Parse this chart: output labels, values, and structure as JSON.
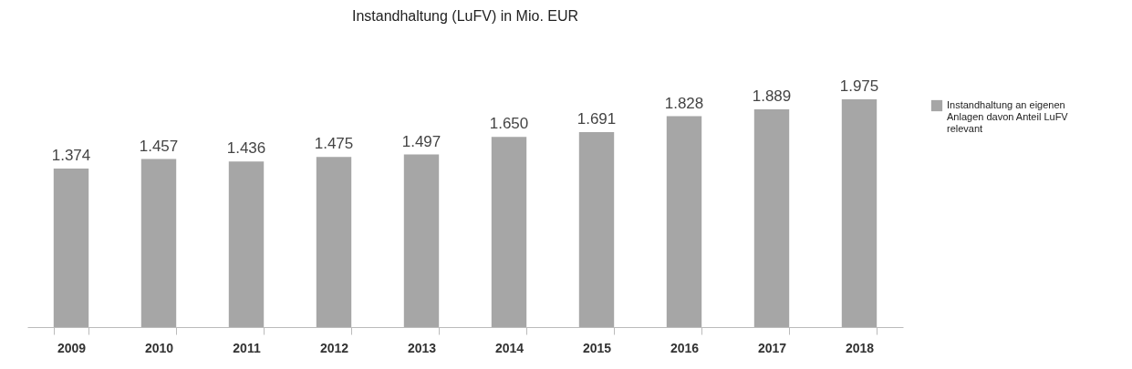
{
  "chart_data": {
    "type": "bar",
    "title": "Instandhaltung (LuFV) in Mio. EUR",
    "categories": [
      "2009",
      "2010",
      "2011",
      "2012",
      "2013",
      "2014",
      "2015",
      "2016",
      "2017",
      "2018"
    ],
    "series": [
      {
        "name": "Instandhaltung an eigenen Anlagen davon Anteil LuFV relevant",
        "color": "#a6a6a6",
        "values": [
          1374,
          1457,
          1436,
          1475,
          1497,
          1650,
          1691,
          1828,
          1889,
          1975
        ],
        "value_labels": [
          "1.374",
          "1.457",
          "1.436",
          "1.475",
          "1.497",
          "1.650",
          "1.691",
          "1.828",
          "1.889",
          "1.975"
        ]
      }
    ],
    "legend": "right",
    "grid": false
  }
}
